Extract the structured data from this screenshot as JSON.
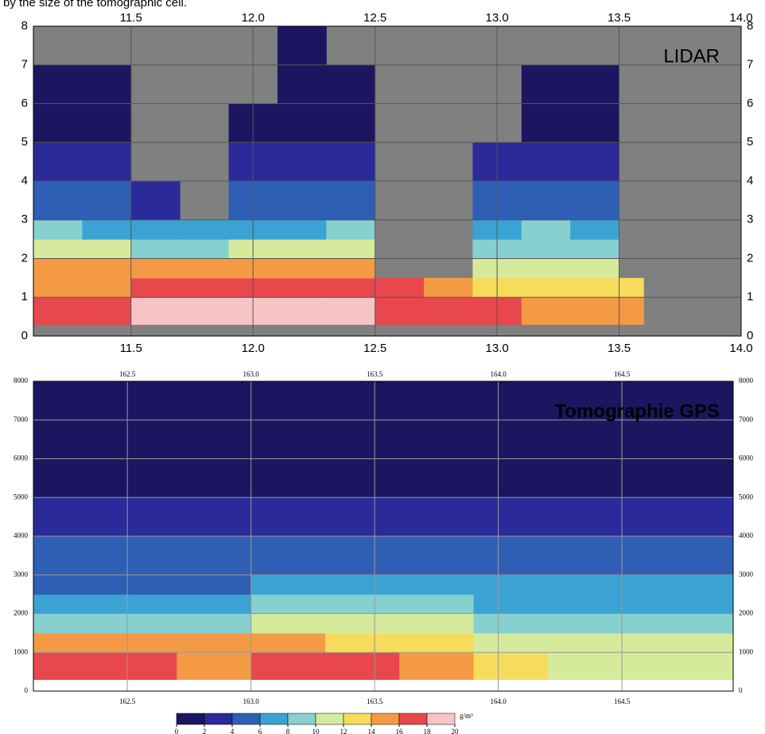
{
  "caption": "by the size of the tomographic cell.",
  "chart_data": [
    {
      "type": "heatmap",
      "label": "LIDAR",
      "background": "#808080",
      "xlim": [
        11.1,
        14.0
      ],
      "ylim": [
        0,
        8
      ],
      "xticks": [
        11.5,
        {
          "value": 12.0,
          "label": "12.0"
        },
        12.5,
        {
          "value": 13.0,
          "label": "13.0"
        },
        13.5,
        {
          "value": 14.0,
          "label": "14.0"
        }
      ],
      "yticks": [
        0,
        1,
        2,
        3,
        4,
        5,
        6,
        7,
        8
      ],
      "x": [
        11.1,
        11.3,
        11.5,
        11.7,
        11.9,
        12.1,
        12.3,
        12.5,
        12.7,
        12.9,
        13.1,
        13.3,
        13.5,
        13.6
      ],
      "y": [
        0.3,
        1,
        1.5,
        2,
        2.5,
        3,
        4,
        5,
        6,
        7,
        8
      ],
      "z": [
        [
          17,
          15,
          14,
          10,
          8,
          5,
          2,
          1,
          1,
          null
        ],
        [
          17,
          15,
          14,
          10,
          7,
          4,
          2,
          1,
          1,
          null
        ],
        [
          19,
          16,
          14,
          9,
          6,
          3,
          null,
          null,
          null,
          null
        ],
        [
          19,
          17,
          14,
          8,
          6,
          null,
          null,
          null,
          null,
          null
        ],
        [
          19,
          17,
          15,
          10,
          7,
          4,
          2,
          1,
          null,
          null
        ],
        [
          19,
          17,
          14,
          10,
          7,
          4,
          2,
          1,
          1,
          1
        ],
        [
          18,
          16,
          14,
          11,
          8,
          4,
          2,
          1,
          1,
          null
        ],
        [
          17,
          17,
          null,
          null,
          null,
          null,
          null,
          null,
          null,
          null
        ],
        [
          17,
          15,
          null,
          null,
          null,
          null,
          null,
          null,
          null,
          null
        ],
        [
          16,
          13,
          11,
          9,
          7,
          5,
          2,
          null,
          null,
          null
        ],
        [
          14,
          12,
          10,
          9,
          8,
          5,
          2,
          1,
          1,
          null
        ],
        [
          14,
          12,
          11,
          9,
          7,
          4,
          2,
          1,
          1,
          null
        ],
        [
          14,
          12,
          null,
          null,
          null,
          null,
          null,
          null,
          null,
          null
        ]
      ]
    },
    {
      "type": "heatmap",
      "label": "Tomographie GPS",
      "background": "#ffffff",
      "xlim": [
        162.12,
        164.95
      ],
      "ylim": [
        0,
        8000
      ],
      "xticks": [
        162.5,
        {
          "value": 163.0,
          "label": "163.0"
        },
        163.5,
        {
          "value": 164.0,
          "label": "164.0"
        },
        164.5
      ],
      "yticks": [
        0,
        1000,
        2000,
        3000,
        4000,
        5000,
        6000,
        7000,
        8000
      ],
      "x": [
        162.12,
        162.4,
        162.7,
        163.0,
        163.3,
        163.6,
        163.9,
        164.2,
        164.5,
        164.8,
        164.95
      ],
      "y": [
        300,
        1000,
        1500,
        2000,
        2500,
        3000,
        4000,
        5000,
        6000,
        7000,
        8000
      ],
      "z": [
        [
          16,
          14,
          9,
          7,
          5,
          4,
          2,
          1,
          1,
          1
        ],
        [
          16,
          14,
          9,
          7,
          5,
          4,
          2,
          1,
          1,
          1
        ],
        [
          15,
          14,
          9,
          7,
          5,
          4,
          2,
          1,
          1,
          1
        ],
        [
          17,
          14,
          10,
          8,
          6,
          4,
          2,
          1,
          1,
          1
        ],
        [
          16,
          13,
          10,
          8,
          7,
          5,
          2,
          1,
          1,
          1
        ],
        [
          15,
          12,
          10,
          8,
          6,
          5,
          3,
          1,
          1,
          1
        ],
        [
          12,
          11,
          9,
          7,
          6,
          5,
          2,
          1,
          1,
          1
        ],
        [
          11,
          10,
          8,
          7,
          6,
          5,
          2,
          1,
          1,
          1
        ],
        [
          11,
          10,
          8,
          7,
          6,
          5,
          2,
          1,
          1,
          1
        ],
        [
          11,
          10,
          8,
          7,
          6,
          5,
          2,
          1,
          1,
          1
        ]
      ]
    }
  ],
  "colorbar": {
    "label": "g/m³",
    "ticks": [
      0,
      2,
      4,
      6,
      8,
      10,
      12,
      14,
      16,
      18,
      20
    ],
    "colors": [
      "#1c1660",
      "#2a2a9a",
      "#2f5fb5",
      "#3aa3d3",
      "#86d0cf",
      "#d6ea9c",
      "#f6dc5a",
      "#f49a45",
      "#e8474d",
      "#f6c4c4"
    ]
  }
}
